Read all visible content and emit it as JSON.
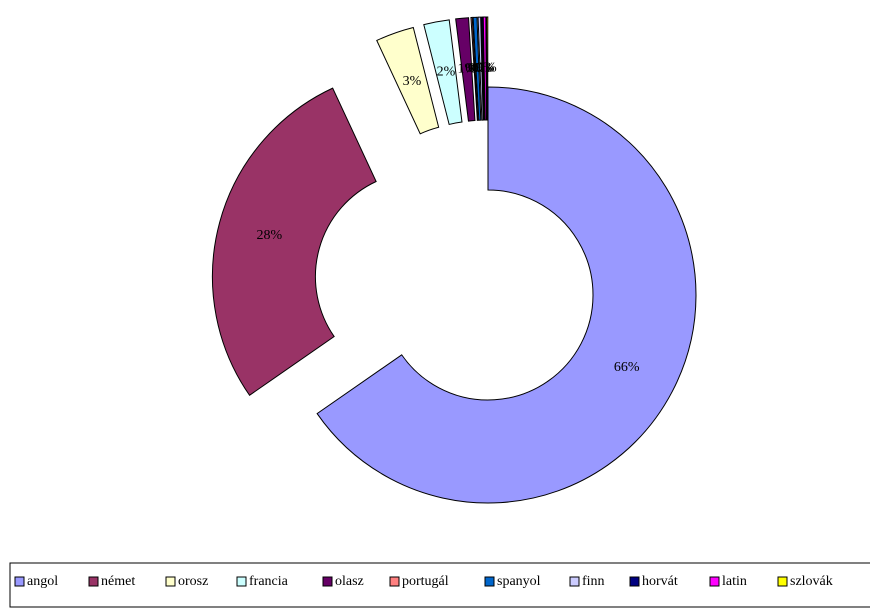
{
  "chart_data": {
    "type": "donut",
    "categories": [
      "angol",
      "német",
      "orosz",
      "francia",
      "olasz",
      "portugál",
      "spanyol",
      "finn",
      "horvát",
      "latin",
      "szlovák"
    ],
    "values": [
      66,
      28,
      3,
      2,
      1,
      0.1,
      0.3,
      0.2,
      0.1,
      0.2,
      0.1
    ],
    "value_labels": [
      "66%",
      "28%",
      "3%",
      "2%",
      "1%",
      "0%",
      "0%",
      "0%",
      "0%",
      "0%",
      "0%"
    ],
    "colors": [
      "#9999ff",
      "#993366",
      "#ffffcc",
      "#ccffff",
      "#660066",
      "#ff8080",
      "#0066cc",
      "#ccccff",
      "#000080",
      "#ff00ff",
      "#ffff00"
    ],
    "legend": "bottom"
  }
}
